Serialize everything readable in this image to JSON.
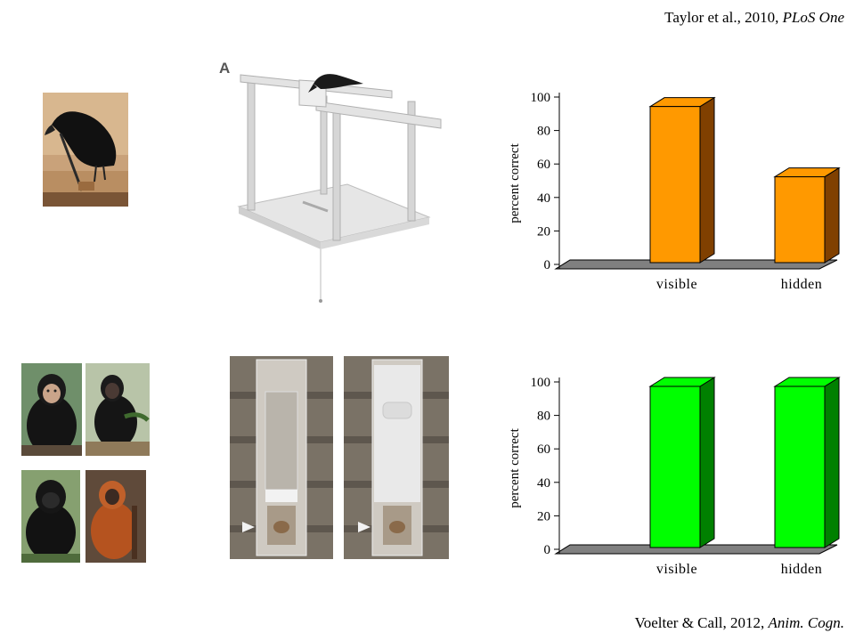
{
  "citations": {
    "top": {
      "authors": "Taylor et al., 2010, ",
      "journal": "PLoS One"
    },
    "bottom": {
      "authors": "Voelter & Call, 2012, ",
      "journal": "Anim. Cogn."
    }
  },
  "figures": {
    "apparatus_top_label": "A"
  },
  "icons": {
    "crow_photo": "crow-photo",
    "crow_apparatus": "crow-apparatus-icon",
    "ape_photos": [
      "chimpanzee-photo",
      "bonobo-photo",
      "gorilla-photo",
      "orangutan-photo"
    ],
    "ape_apparatus": "ape-apparatus-photo"
  },
  "colors": {
    "top_bar_front": "#ff9900",
    "top_bar_side": "#804000",
    "bottom_bar_front": "#00ff00",
    "bottom_bar_side": "#008000",
    "floor": "#808080"
  },
  "chart_data": [
    {
      "type": "bar",
      "categories": [
        "visible",
        "hidden"
      ],
      "values": [
        97,
        55
      ],
      "title": "",
      "xlabel": "",
      "ylabel": "percent correct",
      "ylim": [
        0,
        100
      ],
      "yticks": [
        0,
        20,
        40,
        60,
        80,
        100
      ],
      "grid": false,
      "bar_style": "3d",
      "color": "#ff9900"
    },
    {
      "type": "bar",
      "categories": [
        "visible",
        "hidden"
      ],
      "values": [
        100,
        100
      ],
      "title": "",
      "xlabel": "",
      "ylabel": "percent correct",
      "ylim": [
        0,
        100
      ],
      "yticks": [
        0,
        20,
        40,
        60,
        80,
        100
      ],
      "grid": false,
      "bar_style": "3d",
      "color": "#00ff00"
    }
  ]
}
